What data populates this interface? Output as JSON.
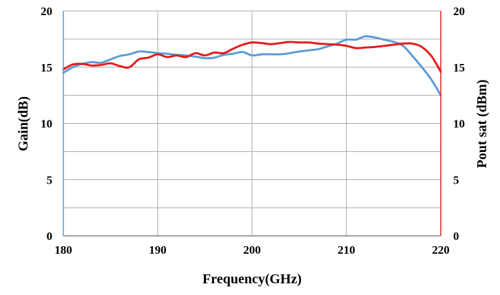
{
  "chart_data": {
    "type": "line",
    "title": "",
    "xlabel": "Frequency(GHz)",
    "ylabel": "Gain(dB)",
    "y2label": "Pout sat (dBm)",
    "xlim": [
      180,
      220
    ],
    "ylim": [
      0,
      20
    ],
    "y2lim": [
      0,
      20
    ],
    "xticks": [
      180,
      190,
      200,
      210,
      220
    ],
    "yticks": [
      0,
      5,
      10,
      15,
      20
    ],
    "y2ticks": [
      0,
      5,
      10,
      15,
      20
    ],
    "xtick_labels": [
      "180",
      "190",
      "200",
      "210",
      "220"
    ],
    "ytick_labels": [
      "0",
      "5",
      "10",
      "15",
      "20"
    ],
    "y2tick_labels": [
      "0",
      "5",
      "10",
      "15",
      "20"
    ],
    "grid": true,
    "legend": "none",
    "series": [
      {
        "axis": "left",
        "color": "#5B9BD5",
        "x": [
          180,
          181,
          182,
          183,
          184,
          185,
          186,
          187,
          188,
          189,
          190,
          191,
          192,
          193,
          194,
          195,
          196,
          197,
          198,
          199,
          200,
          201,
          202,
          203,
          204,
          205,
          206,
          207,
          208,
          209,
          210,
          211,
          212,
          213,
          214,
          215,
          216,
          217,
          218,
          219,
          220
        ],
        "y": [
          14.5,
          15.0,
          15.3,
          15.45,
          15.4,
          15.7,
          16.0,
          16.15,
          16.4,
          16.35,
          16.25,
          16.2,
          16.1,
          16.05,
          15.95,
          15.8,
          15.85,
          16.1,
          16.2,
          16.35,
          16.05,
          16.15,
          16.15,
          16.15,
          16.25,
          16.4,
          16.5,
          16.6,
          16.85,
          17.1,
          17.45,
          17.45,
          17.75,
          17.65,
          17.45,
          17.25,
          16.9,
          16.0,
          15.0,
          13.9,
          12.5
        ]
      },
      {
        "axis": "right",
        "color": "#E41A1C",
        "x": [
          180,
          181,
          182,
          183,
          184,
          185,
          186,
          187,
          188,
          189,
          190,
          191,
          192,
          193,
          194,
          195,
          196,
          197,
          198,
          199,
          200,
          201,
          202,
          203,
          204,
          205,
          206,
          207,
          208,
          209,
          210,
          211,
          212,
          213,
          214,
          215,
          216,
          217,
          218,
          219,
          220
        ],
        "y": [
          14.8,
          15.25,
          15.3,
          15.15,
          15.2,
          15.35,
          15.1,
          15.0,
          15.7,
          15.85,
          16.15,
          15.9,
          16.05,
          15.9,
          16.25,
          16.05,
          16.3,
          16.25,
          16.65,
          17.0,
          17.2,
          17.15,
          17.05,
          17.15,
          17.25,
          17.2,
          17.2,
          17.1,
          17.05,
          17.0,
          16.9,
          16.7,
          16.75,
          16.8,
          16.9,
          17.0,
          17.1,
          17.1,
          16.8,
          16.0,
          14.6
        ]
      }
    ]
  }
}
